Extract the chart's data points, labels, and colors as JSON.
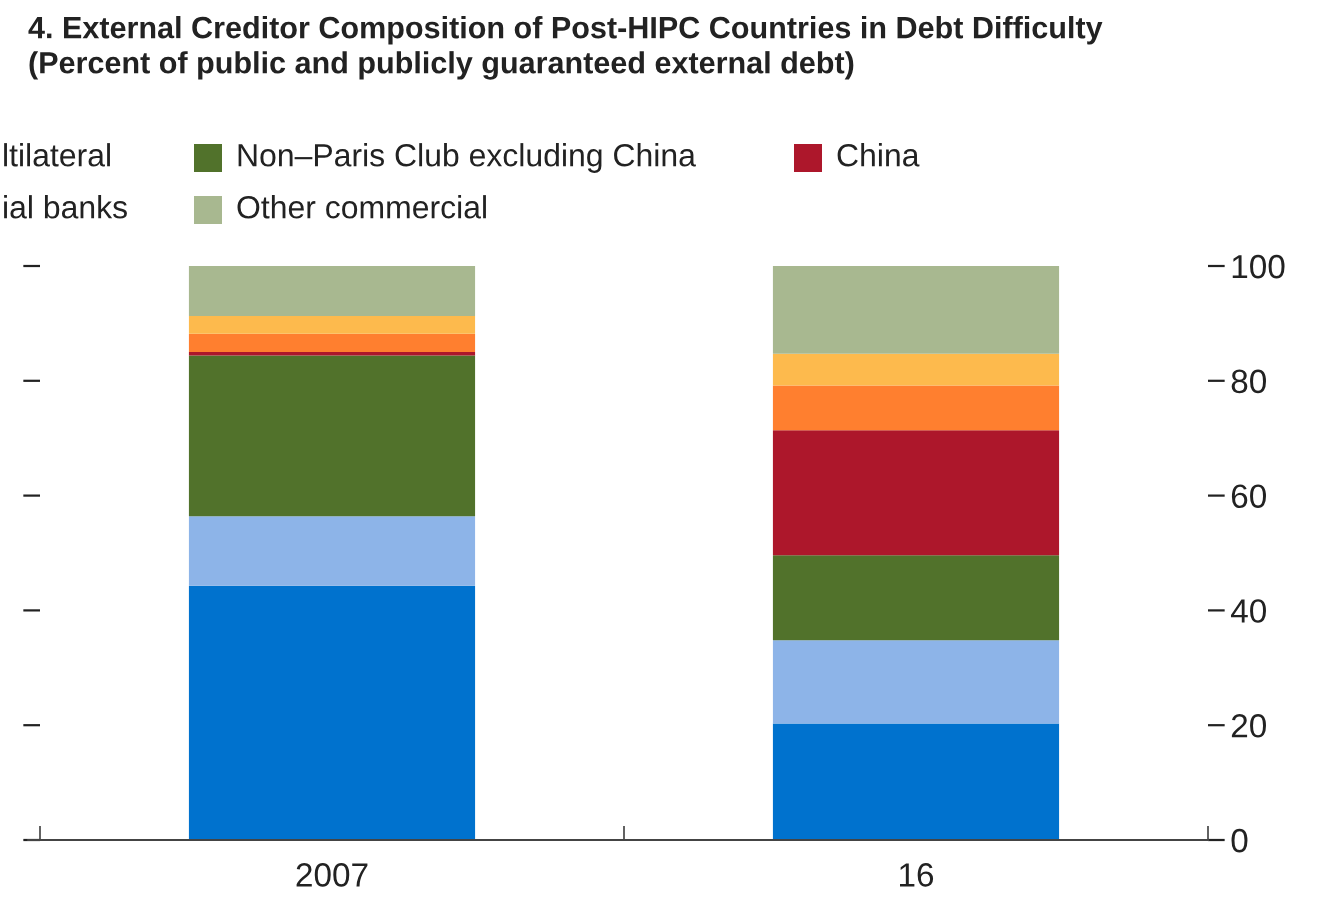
{
  "chart_data": {
    "type": "bar",
    "stacked": true,
    "title": "4. External Creditor Composition of Post-HIPC Countries in Debt Difficulty\n(Percent of public and publicly guaranteed external debt)",
    "categories": [
      "2007",
      "16"
    ],
    "series": [
      {
        "color": "#0072ce",
        "values": [
          44.3,
          20.3
        ]
      },
      {
        "color": "#8db4e8",
        "values": [
          12.1,
          14.5
        ]
      },
      {
        "name": "Non–Paris Club excluding China",
        "color": "#51722b",
        "values": [
          28,
          14.8
        ]
      },
      {
        "name": "China",
        "color": "#ad172b",
        "values": [
          0.6,
          21.8
        ]
      },
      {
        "color": "#ff7f2f",
        "values": [
          3.2,
          7.8
        ]
      },
      {
        "color": "#fdba4d",
        "values": [
          3.1,
          5.5
        ]
      },
      {
        "name": "Other commercial",
        "color": "#a8b890",
        "values": [
          8.7,
          15.3
        ]
      }
    ],
    "ylim": [
      0,
      100
    ],
    "yticks": [
      0,
      20,
      40,
      60,
      80,
      100
    ],
    "annotations": [
      "ltilateral",
      "ial banks"
    ],
    "legend": "top",
    "grid": false
  }
}
